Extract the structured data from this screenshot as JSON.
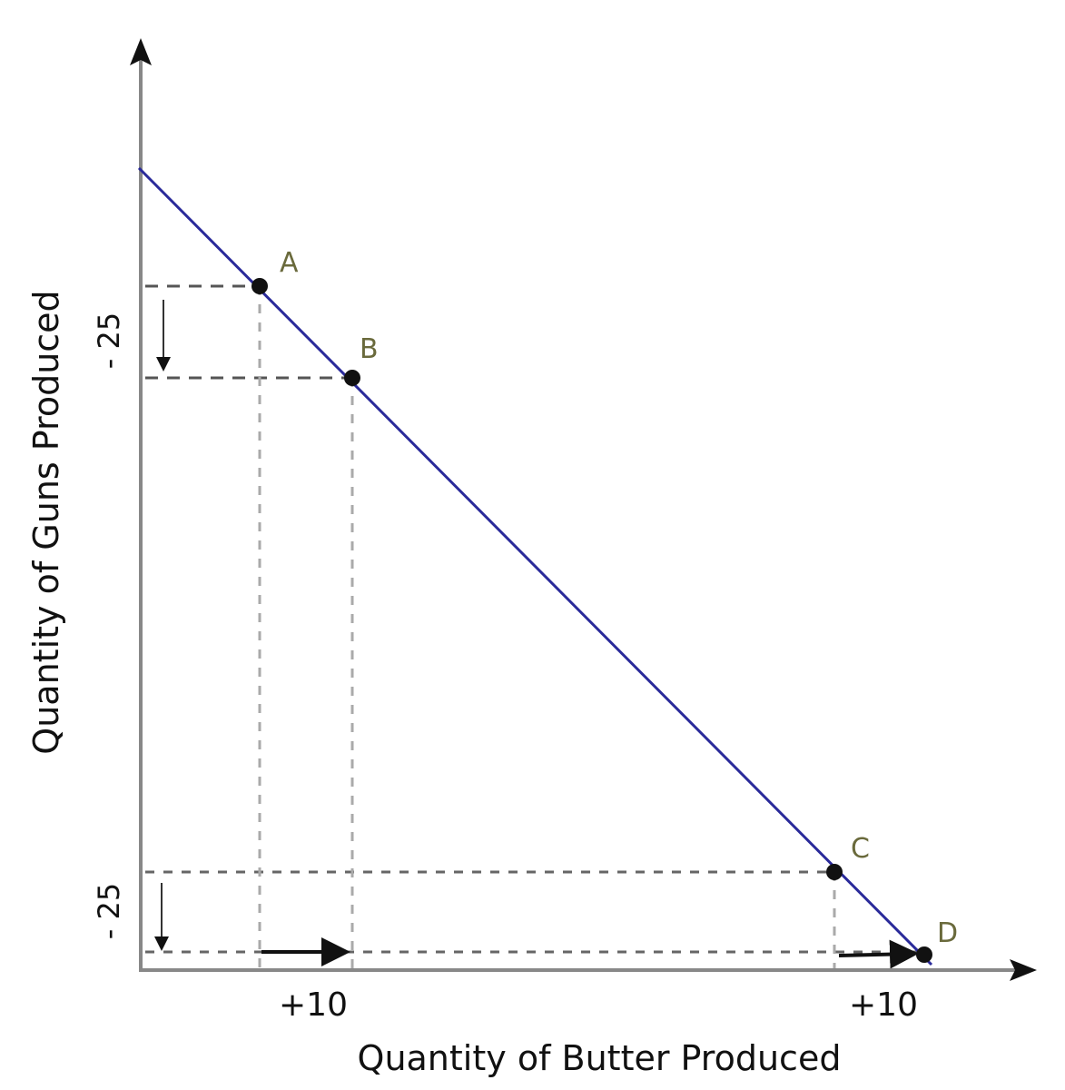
{
  "chart_data": {
    "type": "line",
    "title": "",
    "xlabel": "Quantity of Butter Produced",
    "ylabel": "Quantity of Guns Produced",
    "points": [
      {
        "label": "A"
      },
      {
        "label": "B"
      },
      {
        "label": "C"
      },
      {
        "label": "D"
      }
    ],
    "annotations": {
      "y_change_top": "- 25",
      "y_change_bottom": "- 25",
      "x_change_left": "+10",
      "x_change_right": "+10"
    },
    "grid": false,
    "colors": {
      "line": "#2a2a9a",
      "axis": "#888888",
      "point": "#111111",
      "point_label": "#6a6a3c",
      "guide": "#777777"
    }
  }
}
